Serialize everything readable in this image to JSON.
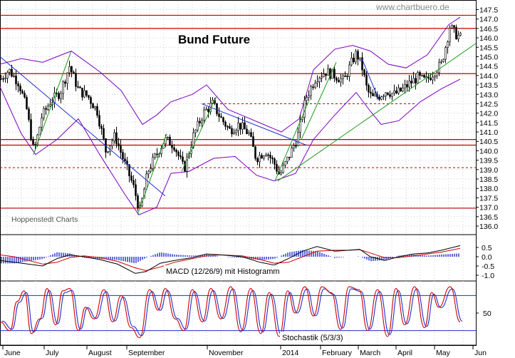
{
  "chart_data": [
    {
      "type": "candlestick",
      "title": "Bund Future",
      "source": "www.chartbuero.de",
      "watermark": "Hoppenstedt Charts",
      "ylim": [
        135.8,
        147.5
      ],
      "y_ticks": [
        "147.5",
        "147.0",
        "146.5",
        "146.0",
        "145.5",
        "145.0",
        "144.5",
        "144.0",
        "143.5",
        "143.0",
        "142.5",
        "142.0",
        "141.5",
        "141.0",
        "140.5",
        "140.0",
        "139.5",
        "139.0",
        "138.5",
        "138.0",
        "137.5",
        "137.0",
        "136.5",
        "136.0"
      ],
      "x_ticks": [
        "June",
        "July",
        "August",
        "September",
        "November",
        "2014",
        "February",
        "March",
        "April",
        "May",
        "Jun"
      ],
      "price_path": [
        [
          0,
          143.8
        ],
        [
          12,
          144.3
        ],
        [
          26,
          143.6
        ],
        [
          37,
          142.2
        ],
        [
          47,
          139.9
        ],
        [
          58,
          141.8
        ],
        [
          70,
          142.6
        ],
        [
          84,
          143.1
        ],
        [
          97,
          144.5
        ],
        [
          110,
          143.2
        ],
        [
          123,
          142.9
        ],
        [
          136,
          142.1
        ],
        [
          148,
          140.0
        ],
        [
          161,
          140.8
        ],
        [
          174,
          139.4
        ],
        [
          186,
          138.2
        ],
        [
          196,
          136.8
        ],
        [
          207,
          138.9
        ],
        [
          219,
          139.8
        ],
        [
          231,
          140.6
        ],
        [
          244,
          140.3
        ],
        [
          258,
          139.0
        ],
        [
          271,
          140.8
        ],
        [
          285,
          142.0
        ],
        [
          298,
          142.5
        ],
        [
          310,
          141.7
        ],
        [
          322,
          141.1
        ],
        [
          335,
          141.4
        ],
        [
          349,
          140.9
        ],
        [
          359,
          139.6
        ],
        [
          373,
          140.0
        ],
        [
          385,
          139.3
        ],
        [
          392,
          138.7
        ],
        [
          404,
          139.6
        ],
        [
          417,
          140.7
        ],
        [
          429,
          142.8
        ],
        [
          443,
          143.9
        ],
        [
          457,
          144.2
        ],
        [
          470,
          144.0
        ],
        [
          482,
          143.7
        ],
        [
          492,
          144.6
        ],
        [
          500,
          145.2
        ],
        [
          508,
          144.4
        ],
        [
          515,
          143.2
        ],
        [
          522,
          142.8
        ],
        [
          531,
          142.9
        ],
        [
          542,
          143.2
        ],
        [
          553,
          143.0
        ],
        [
          563,
          143.2
        ],
        [
          575,
          143.6
        ],
        [
          586,
          143.9
        ],
        [
          597,
          143.7
        ],
        [
          609,
          144.2
        ],
        [
          619,
          144.6
        ],
        [
          626,
          145.7
        ],
        [
          631,
          146.6
        ],
        [
          639,
          146.2
        ],
        [
          647,
          146.0
        ]
      ],
      "bollinger_upper": [
        [
          0,
          144.6
        ],
        [
          30,
          144.9
        ],
        [
          60,
          144.7
        ],
        [
          100,
          145.3
        ],
        [
          140,
          144.2
        ],
        [
          170,
          143.2
        ],
        [
          200,
          141.4
        ],
        [
          220,
          141.9
        ],
        [
          240,
          142.6
        ],
        [
          270,
          143.0
        ],
        [
          290,
          143.5
        ],
        [
          320,
          142.2
        ],
        [
          345,
          141.8
        ],
        [
          370,
          141.4
        ],
        [
          395,
          141.0
        ],
        [
          420,
          141.7
        ],
        [
          440,
          144.3
        ],
        [
          470,
          145.4
        ],
        [
          495,
          145.6
        ],
        [
          520,
          145.3
        ],
        [
          545,
          144.6
        ],
        [
          570,
          144.4
        ],
        [
          600,
          145.1
        ],
        [
          630,
          146.7
        ],
        [
          646,
          147.1
        ]
      ],
      "bollinger_lower": [
        [
          0,
          143.4
        ],
        [
          30,
          140.9
        ],
        [
          50,
          139.8
        ],
        [
          80,
          140.6
        ],
        [
          110,
          141.7
        ],
        [
          140,
          139.8
        ],
        [
          175,
          137.7
        ],
        [
          195,
          136.6
        ],
        [
          220,
          137.0
        ],
        [
          240,
          138.8
        ],
        [
          265,
          138.9
        ],
        [
          300,
          139.6
        ],
        [
          330,
          139.7
        ],
        [
          360,
          138.7
        ],
        [
          385,
          138.4
        ],
        [
          415,
          138.8
        ],
        [
          440,
          140.6
        ],
        [
          470,
          141.9
        ],
        [
          500,
          143.1
        ],
        [
          520,
          142.1
        ],
        [
          535,
          141.4
        ],
        [
          560,
          141.6
        ],
        [
          590,
          142.6
        ],
        [
          620,
          143.3
        ],
        [
          646,
          143.8
        ]
      ],
      "resistance_solid": [
        147.2,
        146.5,
        144.1,
        140.6,
        140.3,
        136.95
      ],
      "resistance_dashed": [
        {
          "from": 285,
          "to": 585,
          "value": 142.5
        },
        {
          "from": 0,
          "to": 668,
          "value": 139.1
        }
      ],
      "trendlines_green": [
        [
          [
            47,
            139.8
          ],
          [
            100,
            145.3
          ]
        ],
        [
          [
            193,
            136.6
          ],
          [
            234,
            140.9
          ]
        ],
        [
          [
            255,
            138.9
          ],
          [
            304,
            142.9
          ]
        ],
        [
          [
            386,
            138.4
          ],
          [
            433,
            142.6
          ]
        ],
        [
          [
            423,
            140.6
          ],
          [
            472,
            144.7
          ]
        ],
        [
          [
            390,
            138.4
          ],
          [
            668,
            145.7
          ]
        ]
      ],
      "trendlines_blue": [
        [
          [
            0,
            145.0
          ],
          [
            232,
            137.6
          ]
        ],
        [
          [
            283,
            142.5
          ],
          [
            430,
            140.3
          ]
        ],
        [
          [
            508,
            144.9
          ],
          [
            532,
            142.7
          ]
        ]
      ]
    },
    {
      "type": "macd",
      "label": "MACD (12/26/9) mit Histogramm",
      "ylim": [
        -1.0,
        0.5
      ],
      "y_ticks": [
        "0.5",
        "0.0",
        "-0.5",
        "-1.0"
      ],
      "macd": [
        [
          0,
          -0.2
        ],
        [
          20,
          -0.3
        ],
        [
          40,
          -0.4
        ],
        [
          60,
          -0.5
        ],
        [
          80,
          -0.1
        ],
        [
          98,
          0.1
        ],
        [
          118,
          0.0
        ],
        [
          140,
          -0.15
        ],
        [
          165,
          -0.4
        ],
        [
          190,
          -0.9
        ],
        [
          205,
          -0.8
        ],
        [
          225,
          -0.35
        ],
        [
          245,
          -0.2
        ],
        [
          270,
          -0.05
        ],
        [
          290,
          0.15
        ],
        [
          310,
          0.1
        ],
        [
          340,
          0.0
        ],
        [
          365,
          -0.3
        ],
        [
          385,
          -0.45
        ],
        [
          405,
          -0.1
        ],
        [
          425,
          0.3
        ],
        [
          445,
          0.55
        ],
        [
          470,
          0.3
        ],
        [
          490,
          0.35
        ],
        [
          505,
          0.4
        ],
        [
          520,
          0.0
        ],
        [
          540,
          -0.2
        ],
        [
          560,
          0.0
        ],
        [
          580,
          0.15
        ],
        [
          600,
          0.2
        ],
        [
          620,
          0.35
        ],
        [
          646,
          0.6
        ]
      ],
      "signal": [
        [
          0,
          0.1
        ],
        [
          20,
          0.0
        ],
        [
          40,
          -0.2
        ],
        [
          60,
          -0.4
        ],
        [
          80,
          -0.3
        ],
        [
          98,
          -0.05
        ],
        [
          118,
          0.05
        ],
        [
          140,
          -0.05
        ],
        [
          165,
          -0.25
        ],
        [
          190,
          -0.6
        ],
        [
          205,
          -0.75
        ],
        [
          225,
          -0.55
        ],
        [
          245,
          -0.3
        ],
        [
          270,
          -0.1
        ],
        [
          290,
          0.05
        ],
        [
          310,
          0.1
        ],
        [
          340,
          0.05
        ],
        [
          365,
          -0.15
        ],
        [
          385,
          -0.35
        ],
        [
          405,
          -0.3
        ],
        [
          425,
          0.0
        ],
        [
          445,
          0.3
        ],
        [
          470,
          0.35
        ],
        [
          490,
          0.35
        ],
        [
          505,
          0.38
        ],
        [
          520,
          0.2
        ],
        [
          540,
          -0.05
        ],
        [
          560,
          -0.05
        ],
        [
          580,
          0.05
        ],
        [
          600,
          0.15
        ],
        [
          620,
          0.25
        ],
        [
          646,
          0.45
        ]
      ]
    },
    {
      "type": "stochastic",
      "label": "Stochastik (5/3/3)",
      "ylim": [
        0,
        100
      ],
      "y_ticks": [
        "50"
      ],
      "levels": [
        80,
        20
      ],
      "k_peaks": [
        [
          0,
          35
        ],
        [
          14,
          20
        ],
        [
          24,
          70
        ],
        [
          34,
          88
        ],
        [
          44,
          15
        ],
        [
          56,
          40
        ],
        [
          66,
          92
        ],
        [
          78,
          30
        ],
        [
          88,
          88
        ],
        [
          98,
          92
        ],
        [
          110,
          20
        ],
        [
          120,
          60
        ],
        [
          132,
          40
        ],
        [
          146,
          90
        ],
        [
          158,
          35
        ],
        [
          170,
          80
        ],
        [
          184,
          25
        ],
        [
          196,
          8
        ],
        [
          210,
          90
        ],
        [
          222,
          55
        ],
        [
          232,
          92
        ],
        [
          246,
          40
        ],
        [
          258,
          20
        ],
        [
          270,
          90
        ],
        [
          284,
          35
        ],
        [
          296,
          92
        ],
        [
          310,
          40
        ],
        [
          324,
          95
        ],
        [
          338,
          18
        ],
        [
          352,
          92
        ],
        [
          366,
          15
        ],
        [
          378,
          85
        ],
        [
          392,
          10
        ],
        [
          404,
          88
        ],
        [
          414,
          50
        ],
        [
          428,
          95
        ],
        [
          440,
          45
        ],
        [
          452,
          95
        ],
        [
          465,
          85
        ],
        [
          478,
          22
        ],
        [
          490,
          95
        ],
        [
          504,
          90
        ],
        [
          516,
          20
        ],
        [
          530,
          90
        ],
        [
          544,
          10
        ],
        [
          556,
          92
        ],
        [
          568,
          30
        ],
        [
          582,
          95
        ],
        [
          596,
          25
        ],
        [
          606,
          85
        ],
        [
          616,
          60
        ],
        [
          632,
          95
        ],
        [
          646,
          35
        ]
      ]
    }
  ]
}
